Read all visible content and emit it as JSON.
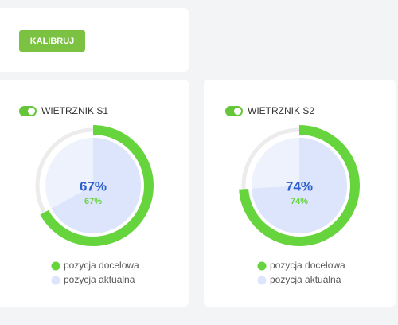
{
  "header": {
    "button": "KALIBRUJ"
  },
  "cards": [
    {
      "title": "WIETRZNIK S1",
      "target": {
        "value": 67,
        "label": "67%"
      },
      "actual": {
        "value": 67,
        "label": "67%"
      }
    },
    {
      "title": "WIETRZNIK S2",
      "target": {
        "value": 74,
        "label": "74%"
      },
      "actual": {
        "value": 74,
        "label": "74%"
      }
    }
  ],
  "legend": [
    "pozycja docelowa",
    "pozycja aktualna"
  ]
}
